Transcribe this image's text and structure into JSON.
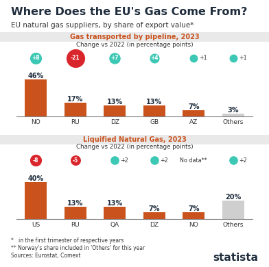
{
  "title": "Where Does the EU's Gas Come From?",
  "subtitle": "EU natural gas suppliers, by share of export value*",
  "chart_data": [
    {
      "type": "bar",
      "title": "Gas transported by pipeline, 2023",
      "change_title": "Change vs 2022 (in percentage points)",
      "categories": [
        "NO",
        "RU",
        "DZ",
        "GB",
        "AZ",
        "Others"
      ],
      "values": [
        46,
        17,
        13,
        13,
        7,
        3
      ],
      "value_labels": [
        "46%",
        "17%",
        "13%",
        "13%",
        "7%",
        "3%"
      ],
      "changes": [
        8,
        -21,
        7,
        4,
        1,
        1
      ],
      "change_labels": [
        "+8",
        "-21",
        "+7",
        "+4",
        "+1",
        "+1"
      ],
      "colors": [
        "#c9521d",
        "#c9521d",
        "#c9521d",
        "#c9521d",
        "#c9521d",
        "#cfcfcf"
      ],
      "ylim": [
        0,
        55
      ],
      "data_labels": true,
      "tick_labels": "x"
    },
    {
      "type": "bar",
      "title": "Liquified Natural Gas, 2023",
      "change_title": "Change vs 2022 (in percentage points)",
      "categories": [
        "US",
        "RU",
        "QA",
        "DZ",
        "NO",
        "Others"
      ],
      "values": [
        40,
        13,
        13,
        7,
        7,
        20
      ],
      "value_labels": [
        "40%",
        "13%",
        "13%",
        "7%",
        "7%",
        "20%"
      ],
      "changes": [
        -8,
        -5,
        2,
        2,
        null,
        2
      ],
      "change_labels": [
        "-8",
        "-5",
        "+2",
        "+2",
        "No data**",
        "+2"
      ],
      "colors": [
        "#c9521d",
        "#c9521d",
        "#c9521d",
        "#c9521d",
        "#c9521d",
        "#cfcfcf"
      ],
      "ylim": [
        0,
        48
      ],
      "data_labels": true,
      "tick_labels": "x"
    }
  ],
  "footnotes": [
    "*   in the first trimester of respective years",
    "** Norway's share included in 'Others' for this year"
  ],
  "source": "Sources: Eurostat, Comext",
  "brand": "statista"
}
